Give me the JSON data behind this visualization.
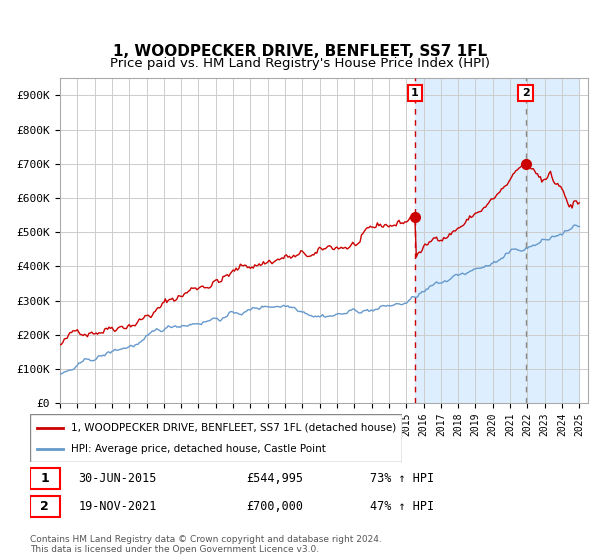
{
  "title": "1, WOODPECKER DRIVE, BENFLEET, SS7 1FL",
  "subtitle": "Price paid vs. HM Land Registry's House Price Index (HPI)",
  "title_fontsize": 11,
  "subtitle_fontsize": 9.5,
  "ylim": [
    0,
    950000
  ],
  "yticks": [
    0,
    100000,
    200000,
    300000,
    400000,
    500000,
    600000,
    700000,
    800000,
    900000
  ],
  "ytick_labels": [
    "£0",
    "£100K",
    "£200K",
    "£300K",
    "£400K",
    "£500K",
    "£600K",
    "£700K",
    "£800K",
    "£900K"
  ],
  "red_color": "#cc0000",
  "blue_color": "#6699cc",
  "bg_color": "#ddeeff",
  "plot_bg": "#ffffff",
  "grid_color": "#cccccc",
  "marker1_date": 2015.5,
  "marker1_value": 544995,
  "marker1_label": "1",
  "marker2_date": 2021.9,
  "marker2_value": 700000,
  "marker2_label": "2",
  "vline1_date": 2015.5,
  "vline2_date": 2021.9,
  "legend_red": "1, WOODPECKER DRIVE, BENFLEET, SS7 1FL (detached house)",
  "legend_blue": "HPI: Average price, detached house, Castle Point",
  "note1_num": "1",
  "note1_date": "30-JUN-2015",
  "note1_price": "£544,995",
  "note1_hpi": "73% ↑ HPI",
  "note2_num": "2",
  "note2_date": "19-NOV-2021",
  "note2_price": "£700,000",
  "note2_hpi": "47% ↑ HPI",
  "copyright": "Contains HM Land Registry data © Crown copyright and database right 2024.\nThis data is licensed under the Open Government Licence v3.0."
}
